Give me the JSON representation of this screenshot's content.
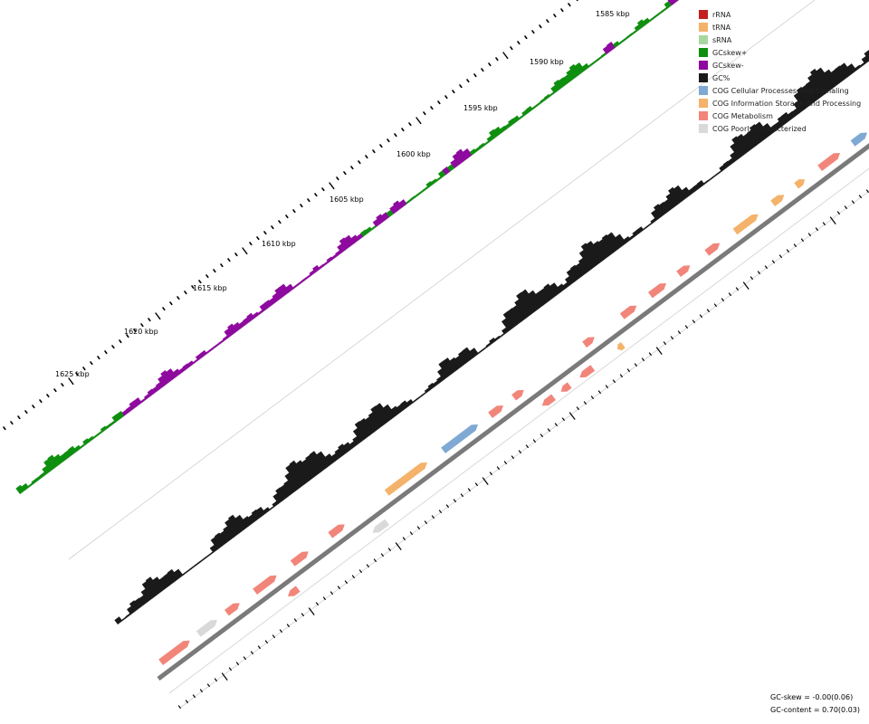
{
  "scale_labels": [
    {
      "id": "1585",
      "text": "1585 kbp"
    },
    {
      "id": "1590",
      "text": "1590 kbp"
    },
    {
      "id": "1595",
      "text": "1595 kbp"
    },
    {
      "id": "1600",
      "text": "1600 kbp"
    },
    {
      "id": "1605",
      "text": "1605 kbp"
    },
    {
      "id": "1610",
      "text": "1610 kbp"
    },
    {
      "id": "1615",
      "text": "1615 kbp"
    },
    {
      "id": "1620",
      "text": "1620 kbp"
    },
    {
      "id": "1625",
      "text": "1625 kbp"
    }
  ],
  "legend": [
    {
      "label": "rRNA",
      "color": "#c41e1e",
      "icon": "rrna-swatch"
    },
    {
      "label": "tRNA",
      "color": "#f4b26a",
      "icon": "trna-swatch"
    },
    {
      "label": "sRNA",
      "color": "#a8d8a0",
      "icon": "srna-swatch"
    },
    {
      "label": "GCskew+",
      "color": "#0f8f0f",
      "icon": "gcskew-plus-swatch"
    },
    {
      "label": "GCskew-",
      "color": "#8e0a9e",
      "icon": "gcskew-minus-swatch"
    },
    {
      "label": "GC%",
      "color": "#1a1a1a",
      "icon": "gc-percent-swatch"
    },
    {
      "label": "COG Cellular Processes And Signaling",
      "color": "#7fa9d4",
      "icon": "cog-cellular-swatch"
    },
    {
      "label": "COG Information Storage And Processing",
      "color": "#f4b26a",
      "icon": "cog-information-swatch"
    },
    {
      "label": "COG Metabolism",
      "color": "#f2857a",
      "icon": "cog-metabolism-swatch"
    },
    {
      "label": "COG Poorly Characterized",
      "color": "#d9d9d9",
      "icon": "cog-poorly-swatch"
    }
  ],
  "stats": {
    "gc_skew": "GC-skew = -0.00(0.06)",
    "gc_content": "GC-content = 0.70(0.03)"
  },
  "colors": {
    "gc_plus": "#0f8f0f",
    "gc_minus": "#8e0a9e",
    "gc_percent": "#1a1a1a",
    "backbone": "#7a7a7a",
    "grid": "#cfcfcf",
    "ticks": "#000000"
  },
  "features": [
    {
      "pos": 0.01,
      "track": "fwd",
      "len": 40,
      "cog": "metabolism"
    },
    {
      "pos": 0.05,
      "track": "fwd",
      "len": 26,
      "cog": "poorly"
    },
    {
      "pos": 0.08,
      "track": "fwd",
      "len": 18,
      "cog": "metabolism"
    },
    {
      "pos": 0.11,
      "track": "fwd",
      "len": 30,
      "cog": "metabolism"
    },
    {
      "pos": 0.13,
      "track": "rev",
      "len": 14,
      "cog": "metabolism"
    },
    {
      "pos": 0.15,
      "track": "fwd",
      "len": 22,
      "cog": "metabolism"
    },
    {
      "pos": 0.19,
      "track": "fwd",
      "len": 20,
      "cog": "metabolism"
    },
    {
      "pos": 0.22,
      "track": "rev",
      "len": 20,
      "cog": "poorly"
    },
    {
      "pos": 0.25,
      "track": "fwd",
      "len": 56,
      "cog": "information"
    },
    {
      "pos": 0.31,
      "track": "fwd",
      "len": 48,
      "cog": "cellular"
    },
    {
      "pos": 0.36,
      "track": "fwd",
      "len": 18,
      "cog": "metabolism"
    },
    {
      "pos": 0.385,
      "track": "fwd",
      "len": 14,
      "cog": "metabolism"
    },
    {
      "pos": 0.4,
      "track": "rev",
      "len": 16,
      "cog": "metabolism"
    },
    {
      "pos": 0.42,
      "track": "rev",
      "len": 12,
      "cog": "metabolism"
    },
    {
      "pos": 0.44,
      "track": "rev",
      "len": 18,
      "cog": "metabolism"
    },
    {
      "pos": 0.46,
      "track": "fwd",
      "len": 14,
      "cog": "metabolism"
    },
    {
      "pos": 0.48,
      "track": "rev",
      "len": 8,
      "cog": "information"
    },
    {
      "pos": 0.5,
      "track": "fwd",
      "len": 20,
      "cog": "metabolism"
    },
    {
      "pos": 0.53,
      "track": "fwd",
      "len": 22,
      "cog": "metabolism"
    },
    {
      "pos": 0.56,
      "track": "fwd",
      "len": 16,
      "cog": "metabolism"
    },
    {
      "pos": 0.59,
      "track": "fwd",
      "len": 18,
      "cog": "metabolism"
    },
    {
      "pos": 0.62,
      "track": "fwd",
      "len": 32,
      "cog": "information"
    },
    {
      "pos": 0.66,
      "track": "fwd",
      "len": 16,
      "cog": "information"
    },
    {
      "pos": 0.685,
      "track": "fwd",
      "len": 12,
      "cog": "information"
    },
    {
      "pos": 0.71,
      "track": "fwd",
      "len": 28,
      "cog": "metabolism"
    },
    {
      "pos": 0.745,
      "track": "fwd",
      "len": 20,
      "cog": "cellular"
    },
    {
      "pos": 0.77,
      "track": "fwd",
      "len": 8,
      "cog": "metabolism"
    },
    {
      "pos": 0.79,
      "track": "fwd",
      "len": 12,
      "cog": "metabolism"
    },
    {
      "pos": 0.81,
      "track": "fwd",
      "len": 14,
      "cog": "metabolism"
    },
    {
      "pos": 0.835,
      "track": "fwd",
      "len": 28,
      "cog": "metabolism"
    },
    {
      "pos": 0.87,
      "track": "fwd",
      "len": 22,
      "cog": "metabolism"
    }
  ]
}
